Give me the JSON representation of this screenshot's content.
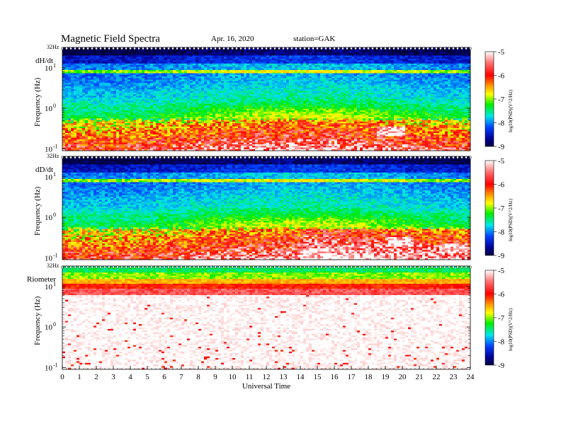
{
  "title": "Magnetic  Field  Spectra",
  "date": "Apr. 16, 2020",
  "station": "station=GAK",
  "chart_data": [
    {
      "type": "heatmap",
      "panel_label": "dH/dt",
      "ylabel": "Frequency (Hz)",
      "y_scale": "log",
      "ylim_top_label": "32Hz",
      "y_ticks": [
        {
          "exp": "1",
          "value": 10
        },
        {
          "exp": "0",
          "value": 1
        },
        {
          "exp": "-1",
          "value": 0.1
        }
      ],
      "xlabel": "Universal Time",
      "x_ticks": [
        "0",
        "1",
        "2",
        "3",
        "4",
        "5",
        "6",
        "7",
        "8",
        "9",
        "10",
        "11",
        "12",
        "13",
        "14",
        "15",
        "16",
        "17",
        "18",
        "19",
        "20",
        "21",
        "22",
        "23",
        "24"
      ],
      "xlim": [
        0,
        24
      ],
      "colorbar": {
        "label": "log10(PSD)(V^2/Hz)",
        "ticks": [
          "-5",
          "-6",
          "-7",
          "-8",
          "-9"
        ],
        "range": [
          -9,
          -5
        ]
      },
      "features": [
        {
          "f_hz": 8,
          "value": -7.0
        },
        {
          "f_hz": 15,
          "value": -8.3
        },
        {
          "hours": [
            18.5,
            20.1
          ],
          "f_hz": 0.25,
          "value": -5.0
        }
      ]
    },
    {
      "type": "heatmap",
      "panel_label": "dD/dt",
      "ylabel": "Frequency (Hz)",
      "y_scale": "log",
      "ylim_top_label": "32Hz",
      "y_ticks": [
        {
          "exp": "1",
          "value": 10
        },
        {
          "exp": "0",
          "value": 1
        },
        {
          "exp": "-1",
          "value": 0.1
        }
      ],
      "xlim": [
        0,
        24
      ],
      "colorbar": {
        "label": "log10(PSD)(V^2/Hz)",
        "ticks": [
          "-5",
          "-6",
          "-7",
          "-8",
          "-9"
        ],
        "range": [
          -9,
          -5
        ]
      },
      "features": [
        {
          "f_hz": 8,
          "value": -7.0
        },
        {
          "hours": [
            14,
            24
          ],
          "f_hz": 0.3,
          "value": -5.8
        },
        {
          "hours": [
            19.2,
            20.6
          ],
          "f_hz": 0.22,
          "value": -5.0
        }
      ]
    },
    {
      "type": "heatmap",
      "panel_label": "Riometer",
      "ylabel": "Frequency (Hz)",
      "y_scale": "log",
      "ylim_top_label": "32Hz",
      "y_ticks": [
        {
          "exp": "1",
          "value": 10
        },
        {
          "exp": "0",
          "value": 1
        },
        {
          "exp": "-1",
          "value": 0.1
        }
      ],
      "xlim": [
        0,
        24
      ],
      "colorbar": {
        "label": "log10(PSD)(V^2/Hz)",
        "ticks": [
          "-5",
          "-6",
          "-7",
          "-8",
          "-9"
        ],
        "range": [
          -9,
          -5
        ]
      },
      "features": [
        {
          "f_hz": 20,
          "value": -7.0
        },
        {
          "f_hz": 10,
          "value": -6.0
        },
        {
          "f_hz": 0.5,
          "value": -5.0
        }
      ]
    }
  ]
}
